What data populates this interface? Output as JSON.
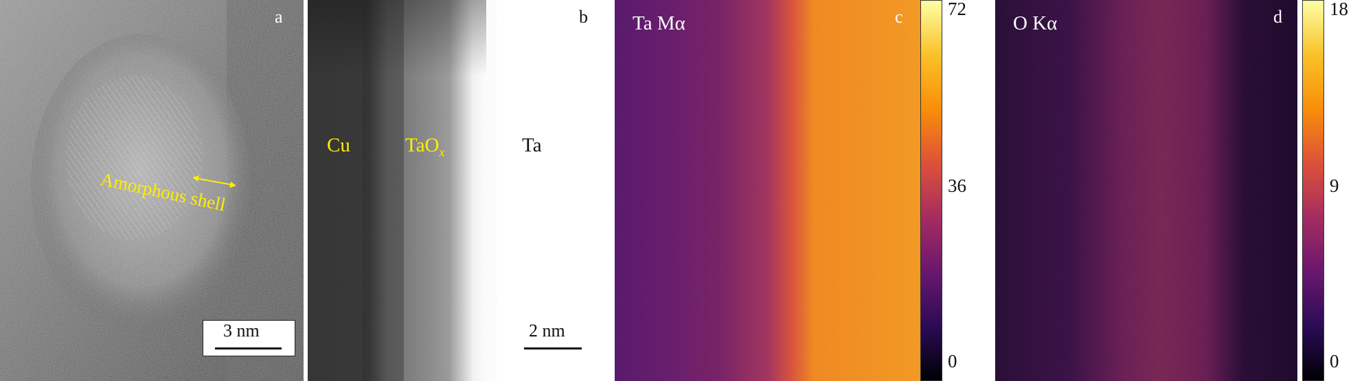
{
  "panels": {
    "a": {
      "label": "a",
      "annotation": "Amorphous shell",
      "scale_bar": "3 nm"
    },
    "b": {
      "label": "b",
      "regions": [
        "Cu",
        "TaO",
        "x",
        "Ta"
      ],
      "scale_bar": "2 nm"
    },
    "c": {
      "label": "c",
      "title": "Ta Mα",
      "colorbar": {
        "max": "72",
        "mid": "36",
        "min": "0"
      }
    },
    "d": {
      "label": "d",
      "title": "O Kα",
      "colorbar": {
        "max": "18",
        "mid": "9",
        "min": "0"
      }
    }
  },
  "colors": {
    "annotation": "#ffee00",
    "colormap": [
      "#000004",
      "#2c0b57",
      "#6a176e",
      "#a52c60",
      "#dd513a",
      "#f98e09",
      "#fac228",
      "#fcffa4"
    ]
  }
}
